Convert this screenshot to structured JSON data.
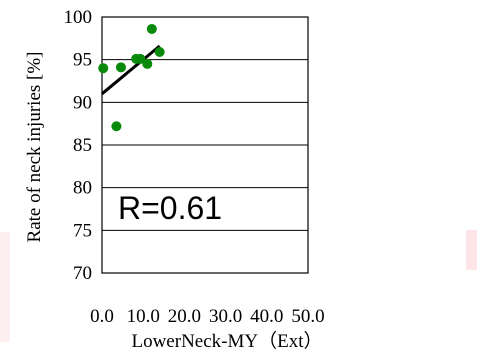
{
  "chart_data": {
    "type": "scatter",
    "title": "",
    "xlabel": "LowerNeck-MY（Ext）",
    "ylabel": "Rate of neck injuries [%]",
    "xlim": [
      0,
      50
    ],
    "ylim": [
      70,
      100
    ],
    "x_ticks": [
      0,
      10,
      20,
      30,
      40,
      50
    ],
    "x_tick_labels": [
      "0.0",
      "10.0",
      "20.0",
      "30.0",
      "40.0",
      "50.0"
    ],
    "y_ticks": [
      70,
      75,
      80,
      85,
      90,
      95,
      100
    ],
    "y_tick_labels": [
      "70",
      "75",
      "80",
      "85",
      "90",
      "95",
      "100"
    ],
    "grid": "horizontal",
    "legend": "none",
    "series": [
      {
        "values": [
          {
            "x": 0.3,
            "y": 94.0
          },
          {
            "x": 3.5,
            "y": 87.2
          },
          {
            "x": 4.6,
            "y": 94.1
          },
          {
            "x": 8.3,
            "y": 95.1
          },
          {
            "x": 9.3,
            "y": 95.1
          },
          {
            "x": 11.0,
            "y": 94.5
          },
          {
            "x": 12.1,
            "y": 98.6
          },
          {
            "x": 14.0,
            "y": 95.9
          }
        ],
        "color": "#0a8a0a"
      }
    ],
    "trendline": {
      "x": [
        0,
        14
      ],
      "y": [
        91.0,
        96.6
      ],
      "color": "#000000"
    },
    "annotations": [
      "R=0.61"
    ]
  }
}
